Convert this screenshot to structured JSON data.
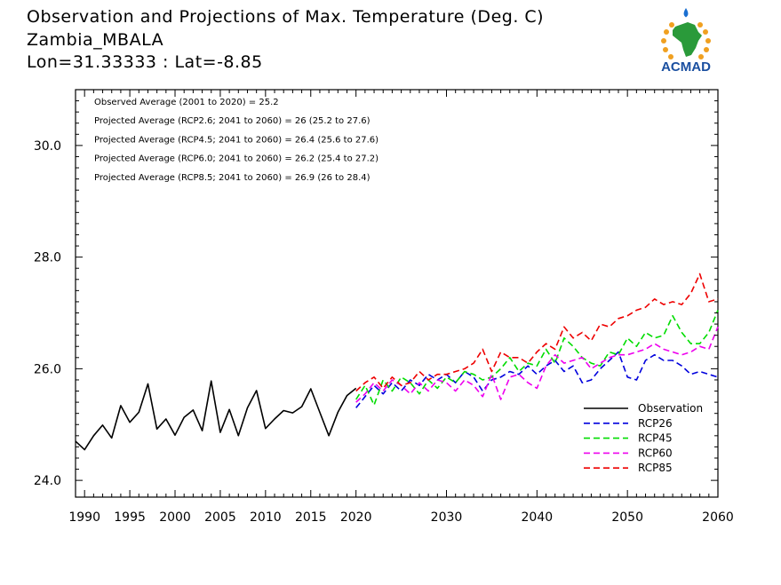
{
  "title": {
    "line1": "Observation and Projections of Max. Temperature (Deg. C)",
    "line2": "Zambia_MBALA",
    "line3": "Lon=31.33333 : Lat=-8.85"
  },
  "logo": {
    "text": "ACMAD"
  },
  "annotations": [
    "Observed Average (2001 to 2020) = 25.2",
    "Projected Average (RCP2.6; 2041 to 2060) = 26 (25.2 to 27.6)",
    "Projected Average (RCP4.5; 2041 to 2060) = 26.4 (25.6 to 27.6)",
    "Projected Average (RCP6.0; 2041 to 2060) = 26.2 (25.4 to 27.2)",
    "Projected Average (RCP8.5; 2041 to 2060) = 26.9 (26 to 28.4)"
  ],
  "chart_data": {
    "type": "line",
    "xlim": [
      1989,
      2060
    ],
    "ylim": [
      23.7,
      31.0
    ],
    "xticks": [
      1990,
      1995,
      2000,
      2005,
      2010,
      2015,
      2020,
      2030,
      2040,
      2050,
      2060
    ],
    "yticks": [
      24.0,
      26.0,
      28.0,
      30.0
    ],
    "ytick_labels": [
      "24.0",
      "26.0",
      "28.0",
      "30.0"
    ],
    "legend_position": "bottom-right",
    "series": [
      {
        "name": "Observation",
        "color": "#000000",
        "dashed": false,
        "x": [
          1989,
          1990,
          1991,
          1992,
          1993,
          1994,
          1995,
          1996,
          1997,
          1998,
          1999,
          2000,
          2001,
          2002,
          2003,
          2004,
          2005,
          2006,
          2007,
          2008,
          2009,
          2010,
          2011,
          2012,
          2013,
          2014,
          2015,
          2016,
          2017,
          2018,
          2019,
          2020
        ],
        "y": [
          24.7,
          24.55,
          24.8,
          24.99,
          24.76,
          25.34,
          25.04,
          25.22,
          25.73,
          24.92,
          25.1,
          24.81,
          25.13,
          25.26,
          24.89,
          25.78,
          24.86,
          25.27,
          24.8,
          25.3,
          25.61,
          24.93,
          25.1,
          25.25,
          25.21,
          25.32,
          25.64,
          25.22,
          24.8,
          25.22,
          25.52,
          25.65
        ]
      },
      {
        "name": "RCP26",
        "color": "#0000dd",
        "dashed": true,
        "x": [
          2020,
          2021,
          2022,
          2023,
          2024,
          2025,
          2026,
          2027,
          2028,
          2029,
          2030,
          2031,
          2032,
          2033,
          2034,
          2035,
          2036,
          2037,
          2038,
          2039,
          2040,
          2041,
          2042,
          2043,
          2044,
          2045,
          2046,
          2047,
          2048,
          2049,
          2050,
          2051,
          2052,
          2053,
          2054,
          2055,
          2056,
          2057,
          2058,
          2059,
          2060
        ],
        "y": [
          25.3,
          25.5,
          25.7,
          25.55,
          25.75,
          25.6,
          25.8,
          25.7,
          25.9,
          25.8,
          25.9,
          25.75,
          25.95,
          25.85,
          25.6,
          25.8,
          25.85,
          25.95,
          25.9,
          26.05,
          25.9,
          26.05,
          26.15,
          25.95,
          26.05,
          25.75,
          25.8,
          26.0,
          26.15,
          26.3,
          25.85,
          25.8,
          26.15,
          26.25,
          26.15,
          26.15,
          26.05,
          25.9,
          25.95,
          25.9,
          25.85
        ]
      },
      {
        "name": "RCP45",
        "color": "#00dd00",
        "dashed": true,
        "x": [
          2020,
          2021,
          2022,
          2023,
          2024,
          2025,
          2026,
          2027,
          2028,
          2029,
          2030,
          2031,
          2032,
          2033,
          2034,
          2035,
          2036,
          2037,
          2038,
          2039,
          2040,
          2041,
          2042,
          2043,
          2044,
          2045,
          2046,
          2047,
          2048,
          2049,
          2050,
          2051,
          2052,
          2053,
          2054,
          2055,
          2056,
          2057,
          2058,
          2059,
          2060
        ],
        "y": [
          25.45,
          25.7,
          25.35,
          25.8,
          25.6,
          25.85,
          25.75,
          25.55,
          25.8,
          25.65,
          25.85,
          25.75,
          25.95,
          25.9,
          25.8,
          25.85,
          26.0,
          26.2,
          25.95,
          26.1,
          26.05,
          26.35,
          26.1,
          26.55,
          26.4,
          26.2,
          26.1,
          26.05,
          26.3,
          26.25,
          26.55,
          26.4,
          26.65,
          26.55,
          26.6,
          26.95,
          26.65,
          26.45,
          26.45,
          26.65,
          27.05
        ]
      },
      {
        "name": "RCP60",
        "color": "#ee00ee",
        "dashed": true,
        "x": [
          2020,
          2021,
          2022,
          2023,
          2024,
          2025,
          2026,
          2027,
          2028,
          2029,
          2030,
          2031,
          2032,
          2033,
          2034,
          2035,
          2036,
          2037,
          2038,
          2039,
          2040,
          2041,
          2042,
          2043,
          2044,
          2045,
          2046,
          2047,
          2048,
          2049,
          2050,
          2051,
          2052,
          2053,
          2054,
          2055,
          2056,
          2057,
          2058,
          2059,
          2060
        ],
        "y": [
          25.4,
          25.55,
          25.75,
          25.6,
          25.8,
          25.7,
          25.55,
          25.75,
          25.6,
          25.8,
          25.75,
          25.6,
          25.8,
          25.7,
          25.5,
          25.9,
          25.45,
          25.85,
          25.9,
          25.75,
          25.65,
          26.05,
          26.25,
          26.1,
          26.15,
          26.2,
          26.0,
          26.1,
          26.2,
          26.25,
          26.25,
          26.3,
          26.35,
          26.45,
          26.35,
          26.3,
          26.25,
          26.3,
          26.4,
          26.35,
          26.75
        ]
      },
      {
        "name": "RCP85",
        "color": "#ee0000",
        "dashed": true,
        "x": [
          2020,
          2021,
          2022,
          2023,
          2024,
          2025,
          2026,
          2027,
          2028,
          2029,
          2030,
          2031,
          2032,
          2033,
          2034,
          2035,
          2036,
          2037,
          2038,
          2039,
          2040,
          2041,
          2042,
          2043,
          2044,
          2045,
          2046,
          2047,
          2048,
          2049,
          2050,
          2051,
          2052,
          2053,
          2054,
          2055,
          2056,
          2057,
          2058,
          2059,
          2060
        ],
        "y": [
          25.6,
          25.75,
          25.85,
          25.65,
          25.85,
          25.7,
          25.75,
          25.95,
          25.8,
          25.9,
          25.9,
          25.95,
          26.0,
          26.1,
          26.35,
          25.95,
          26.3,
          26.2,
          26.2,
          26.1,
          26.3,
          26.45,
          26.35,
          26.75,
          26.55,
          26.65,
          26.5,
          26.8,
          26.75,
          26.9,
          26.95,
          27.05,
          27.1,
          27.25,
          27.15,
          27.2,
          27.15,
          27.35,
          27.7,
          27.2,
          27.25
        ]
      }
    ]
  }
}
